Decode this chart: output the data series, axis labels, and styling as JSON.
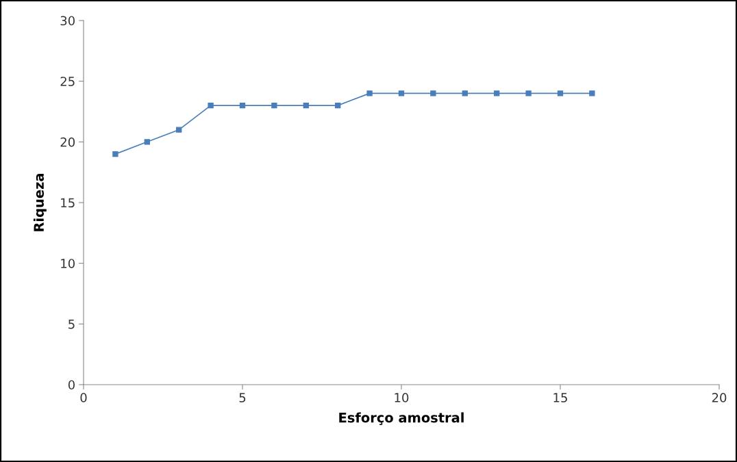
{
  "chart_data": {
    "type": "line",
    "xlabel": "Esforço amostral",
    "ylabel": "Riqueza",
    "x": [
      1,
      2,
      3,
      4,
      5,
      6,
      7,
      8,
      9,
      10,
      11,
      12,
      13,
      14,
      15,
      16
    ],
    "series": [
      {
        "color": "#4a7ebb",
        "values": [
          19,
          20,
          21,
          23,
          23,
          23,
          23,
          23,
          24,
          24,
          24,
          24,
          24,
          24,
          24,
          24
        ]
      }
    ],
    "xlim": [
      0,
      20
    ],
    "xticks": [
      0,
      5,
      10,
      15,
      20
    ],
    "ylim": [
      0,
      30
    ],
    "yticks": [
      0,
      5,
      10,
      15,
      20,
      25,
      30
    ],
    "marker": "square",
    "line_style": "solid"
  }
}
